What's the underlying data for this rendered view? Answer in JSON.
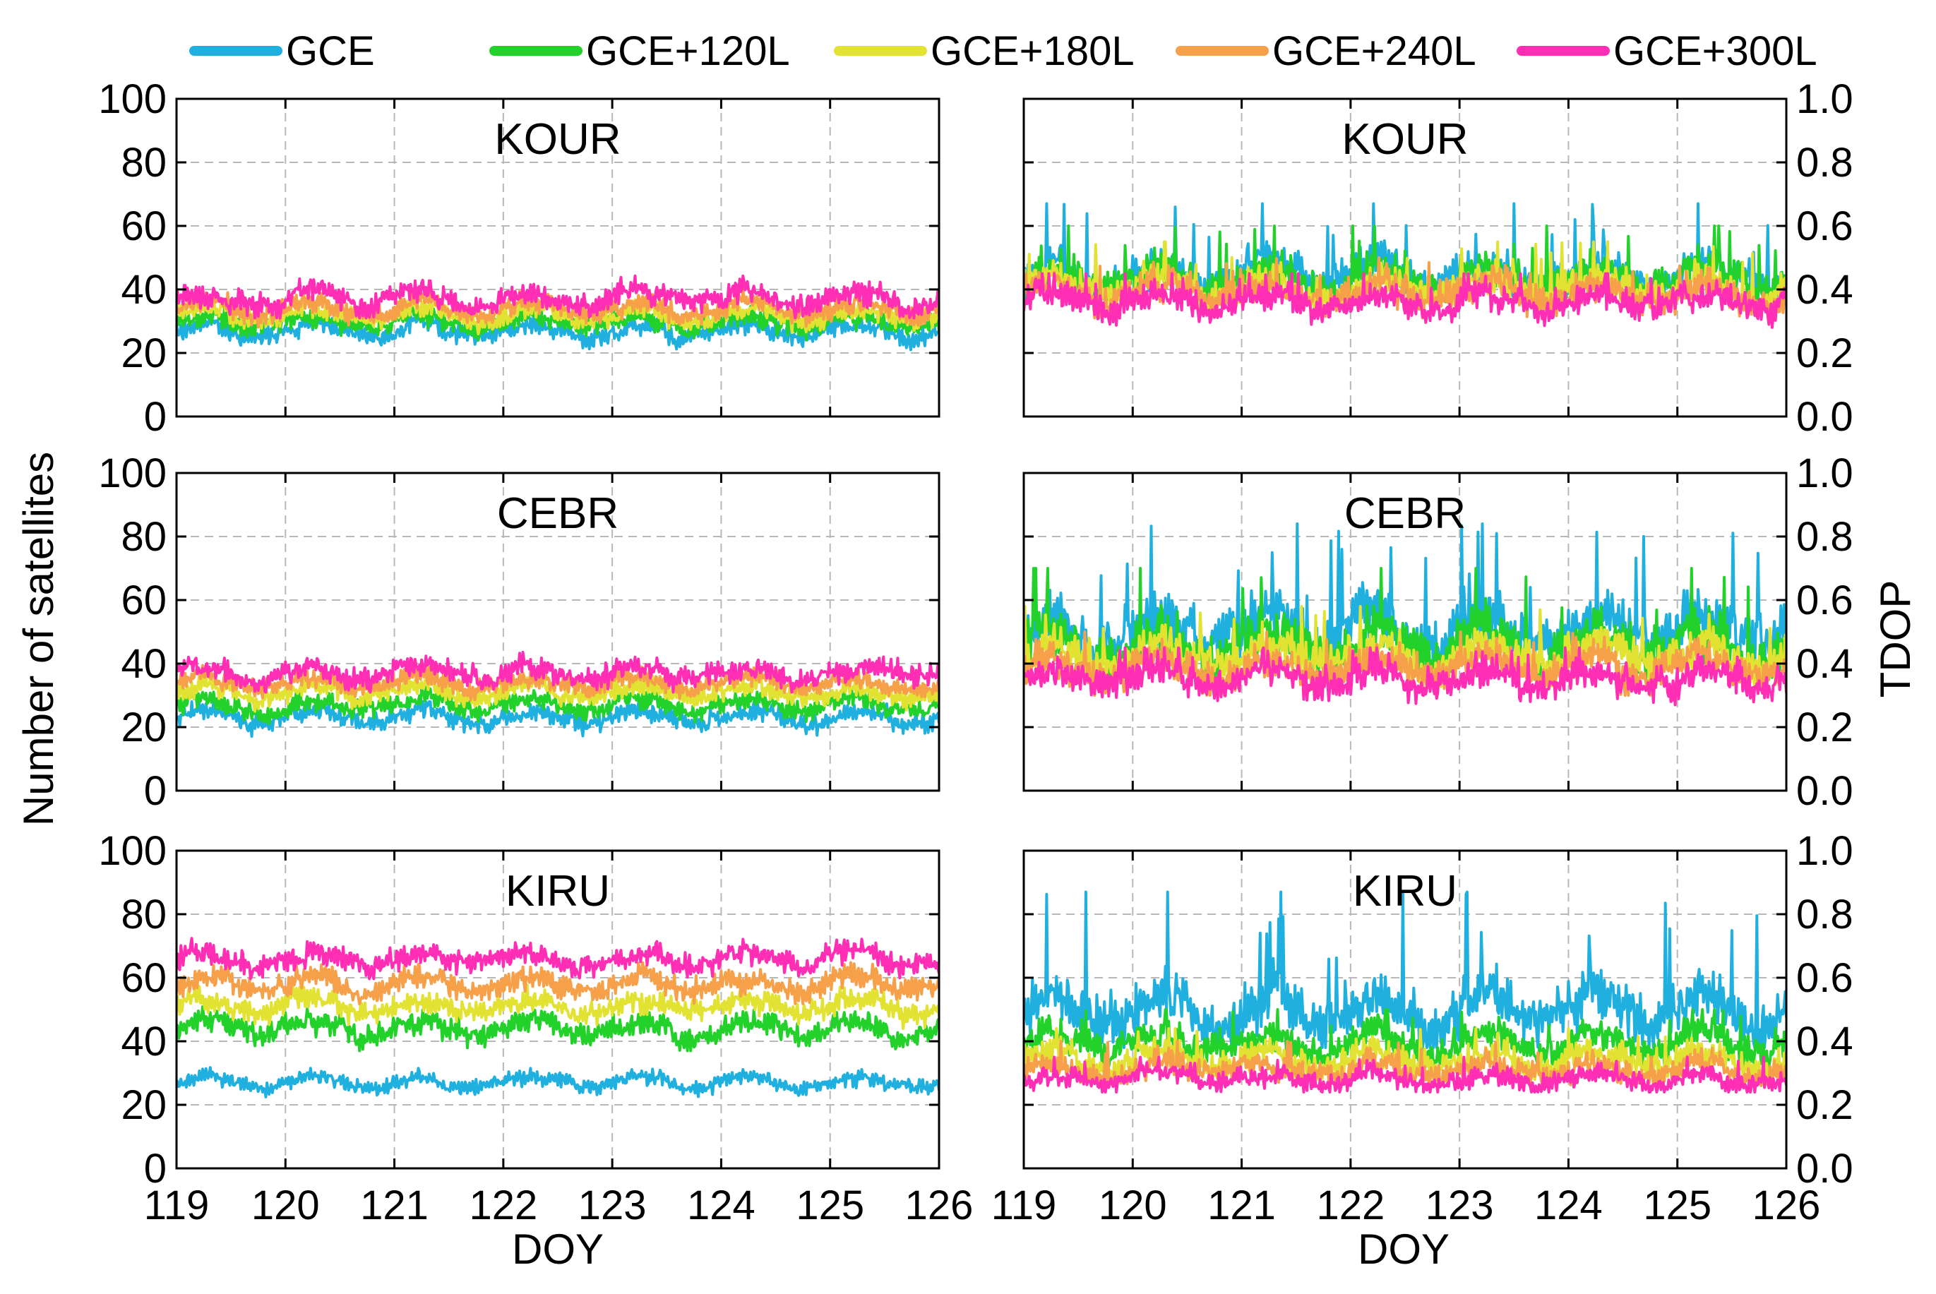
{
  "legend": [
    {
      "name": "GCE",
      "color": "#1fb0e0"
    },
    {
      "name": "GCE+120L",
      "color": "#22d22a"
    },
    {
      "name": "GCE+180L",
      "color": "#e2e232"
    },
    {
      "name": "GCE+240L",
      "color": "#f7a04a"
    },
    {
      "name": "GCE+300L",
      "color": "#ff2eb4"
    }
  ],
  "chart_data": [
    {
      "type": "line",
      "station": "KOUR",
      "column": "left",
      "ylabel": "Number of satellites",
      "xlabel": "DOY",
      "xlim": [
        119,
        126
      ],
      "ylim": [
        0,
        100
      ],
      "grid": true,
      "xticks": [
        "119",
        "120",
        "121",
        "122",
        "123",
        "124",
        "125",
        "126"
      ],
      "yticks": [
        "0",
        "20",
        "40",
        "60",
        "80",
        "100"
      ],
      "series": [
        {
          "name": "GCE",
          "mean": 27,
          "amplitude": 2.5,
          "min": 21,
          "max": 32
        },
        {
          "name": "GCE+120L",
          "mean": 30,
          "amplitude": 2.5,
          "min": 24,
          "max": 36
        },
        {
          "name": "GCE+180L",
          "mean": 32,
          "amplitude": 2.5,
          "min": 26,
          "max": 38
        },
        {
          "name": "GCE+240L",
          "mean": 34,
          "amplitude": 2.5,
          "min": 28,
          "max": 40
        },
        {
          "name": "GCE+300L",
          "mean": 37,
          "amplitude": 3,
          "min": 31,
          "max": 46
        }
      ]
    },
    {
      "type": "line",
      "station": "KOUR",
      "column": "right",
      "ylabel": "TDOP",
      "xlabel": "DOY",
      "xlim": [
        119,
        126
      ],
      "ylim": [
        0,
        1.0
      ],
      "grid": true,
      "xticks": [
        "119",
        "120",
        "121",
        "122",
        "123",
        "124",
        "125",
        "126"
      ],
      "yticks": [
        "0.0",
        "0.2",
        "0.4",
        "0.6",
        "0.8",
        "1.0"
      ],
      "series": [
        {
          "name": "GCE",
          "mean": 0.45,
          "amplitude": 0.05,
          "min": 0.37,
          "max": 0.67
        },
        {
          "name": "GCE+120L",
          "mean": 0.43,
          "amplitude": 0.045,
          "min": 0.35,
          "max": 0.6
        },
        {
          "name": "GCE+180L",
          "mean": 0.41,
          "amplitude": 0.04,
          "min": 0.33,
          "max": 0.55
        },
        {
          "name": "GCE+240L",
          "mean": 0.39,
          "amplitude": 0.04,
          "min": 0.31,
          "max": 0.5
        },
        {
          "name": "GCE+300L",
          "mean": 0.36,
          "amplitude": 0.035,
          "min": 0.28,
          "max": 0.45
        }
      ]
    },
    {
      "type": "line",
      "station": "CEBR",
      "column": "left",
      "ylabel": "Number of satellites",
      "xlabel": "DOY",
      "xlim": [
        119,
        126
      ],
      "ylim": [
        0,
        100
      ],
      "grid": true,
      "xticks": [
        "119",
        "120",
        "121",
        "122",
        "123",
        "124",
        "125",
        "126"
      ],
      "yticks": [
        "0",
        "20",
        "40",
        "60",
        "80",
        "100"
      ],
      "series": [
        {
          "name": "GCE",
          "mean": 23,
          "amplitude": 2.5,
          "min": 17,
          "max": 28
        },
        {
          "name": "GCE+120L",
          "mean": 27,
          "amplitude": 2.5,
          "min": 21,
          "max": 33
        },
        {
          "name": "GCE+180L",
          "mean": 31,
          "amplitude": 2.5,
          "min": 25,
          "max": 37
        },
        {
          "name": "GCE+240L",
          "mean": 34,
          "amplitude": 2.5,
          "min": 28,
          "max": 40
        },
        {
          "name": "GCE+300L",
          "mean": 37,
          "amplitude": 3,
          "min": 31,
          "max": 45
        }
      ]
    },
    {
      "type": "line",
      "station": "CEBR",
      "column": "right",
      "ylabel": "TDOP",
      "xlabel": "DOY",
      "xlim": [
        119,
        126
      ],
      "ylim": [
        0,
        1.0
      ],
      "grid": true,
      "xticks": [
        "119",
        "120",
        "121",
        "122",
        "123",
        "124",
        "125",
        "126"
      ],
      "yticks": [
        "0.0",
        "0.2",
        "0.4",
        "0.6",
        "0.8",
        "1.0"
      ],
      "series": [
        {
          "name": "GCE",
          "mean": 0.5,
          "amplitude": 0.07,
          "min": 0.38,
          "max": 0.84
        },
        {
          "name": "GCE+120L",
          "mean": 0.46,
          "amplitude": 0.06,
          "min": 0.35,
          "max": 0.7
        },
        {
          "name": "GCE+180L",
          "mean": 0.42,
          "amplitude": 0.05,
          "min": 0.32,
          "max": 0.58
        },
        {
          "name": "GCE+240L",
          "mean": 0.39,
          "amplitude": 0.045,
          "min": 0.3,
          "max": 0.5
        },
        {
          "name": "GCE+300L",
          "mean": 0.35,
          "amplitude": 0.04,
          "min": 0.27,
          "max": 0.45
        }
      ]
    },
    {
      "type": "line",
      "station": "KIRU",
      "column": "left",
      "ylabel": "Number of satellites",
      "xlabel": "DOY",
      "xlim": [
        119,
        126
      ],
      "ylim": [
        0,
        100
      ],
      "grid": true,
      "xticks": [
        "119",
        "120",
        "121",
        "122",
        "123",
        "124",
        "125",
        "126"
      ],
      "yticks": [
        "0",
        "20",
        "40",
        "60",
        "80",
        "100"
      ],
      "series": [
        {
          "name": "GCE",
          "mean": 27,
          "amplitude": 2,
          "min": 21,
          "max": 33
        },
        {
          "name": "GCE+120L",
          "mean": 44,
          "amplitude": 3,
          "min": 37,
          "max": 52
        },
        {
          "name": "GCE+180L",
          "mean": 51,
          "amplitude": 3,
          "min": 44,
          "max": 60
        },
        {
          "name": "GCE+240L",
          "mean": 58,
          "amplitude": 3,
          "min": 51,
          "max": 67
        },
        {
          "name": "GCE+300L",
          "mean": 66,
          "amplitude": 3,
          "min": 58,
          "max": 75
        }
      ]
    },
    {
      "type": "line",
      "station": "KIRU",
      "column": "right",
      "ylabel": "TDOP",
      "xlabel": "DOY",
      "xlim": [
        119,
        126
      ],
      "ylim": [
        0,
        1.0
      ],
      "grid": true,
      "xticks": [
        "119",
        "120",
        "121",
        "122",
        "123",
        "124",
        "125",
        "126"
      ],
      "yticks": [
        "0.0",
        "0.2",
        "0.4",
        "0.6",
        "0.8",
        "1.0"
      ],
      "series": [
        {
          "name": "GCE",
          "mean": 0.5,
          "amplitude": 0.07,
          "min": 0.38,
          "max": 0.87
        },
        {
          "name": "GCE+120L",
          "mean": 0.39,
          "amplitude": 0.04,
          "min": 0.32,
          "max": 0.5
        },
        {
          "name": "GCE+180L",
          "mean": 0.34,
          "amplitude": 0.035,
          "min": 0.28,
          "max": 0.44
        },
        {
          "name": "GCE+240L",
          "mean": 0.31,
          "amplitude": 0.03,
          "min": 0.26,
          "max": 0.4
        },
        {
          "name": "GCE+300L",
          "mean": 0.28,
          "amplitude": 0.025,
          "min": 0.24,
          "max": 0.35
        }
      ]
    }
  ],
  "labels": {
    "ylabel_left": "Number of satellites",
    "ylabel_right": "TDOP",
    "xlabel_left": "DOY",
    "xlabel_right": "DOY"
  }
}
